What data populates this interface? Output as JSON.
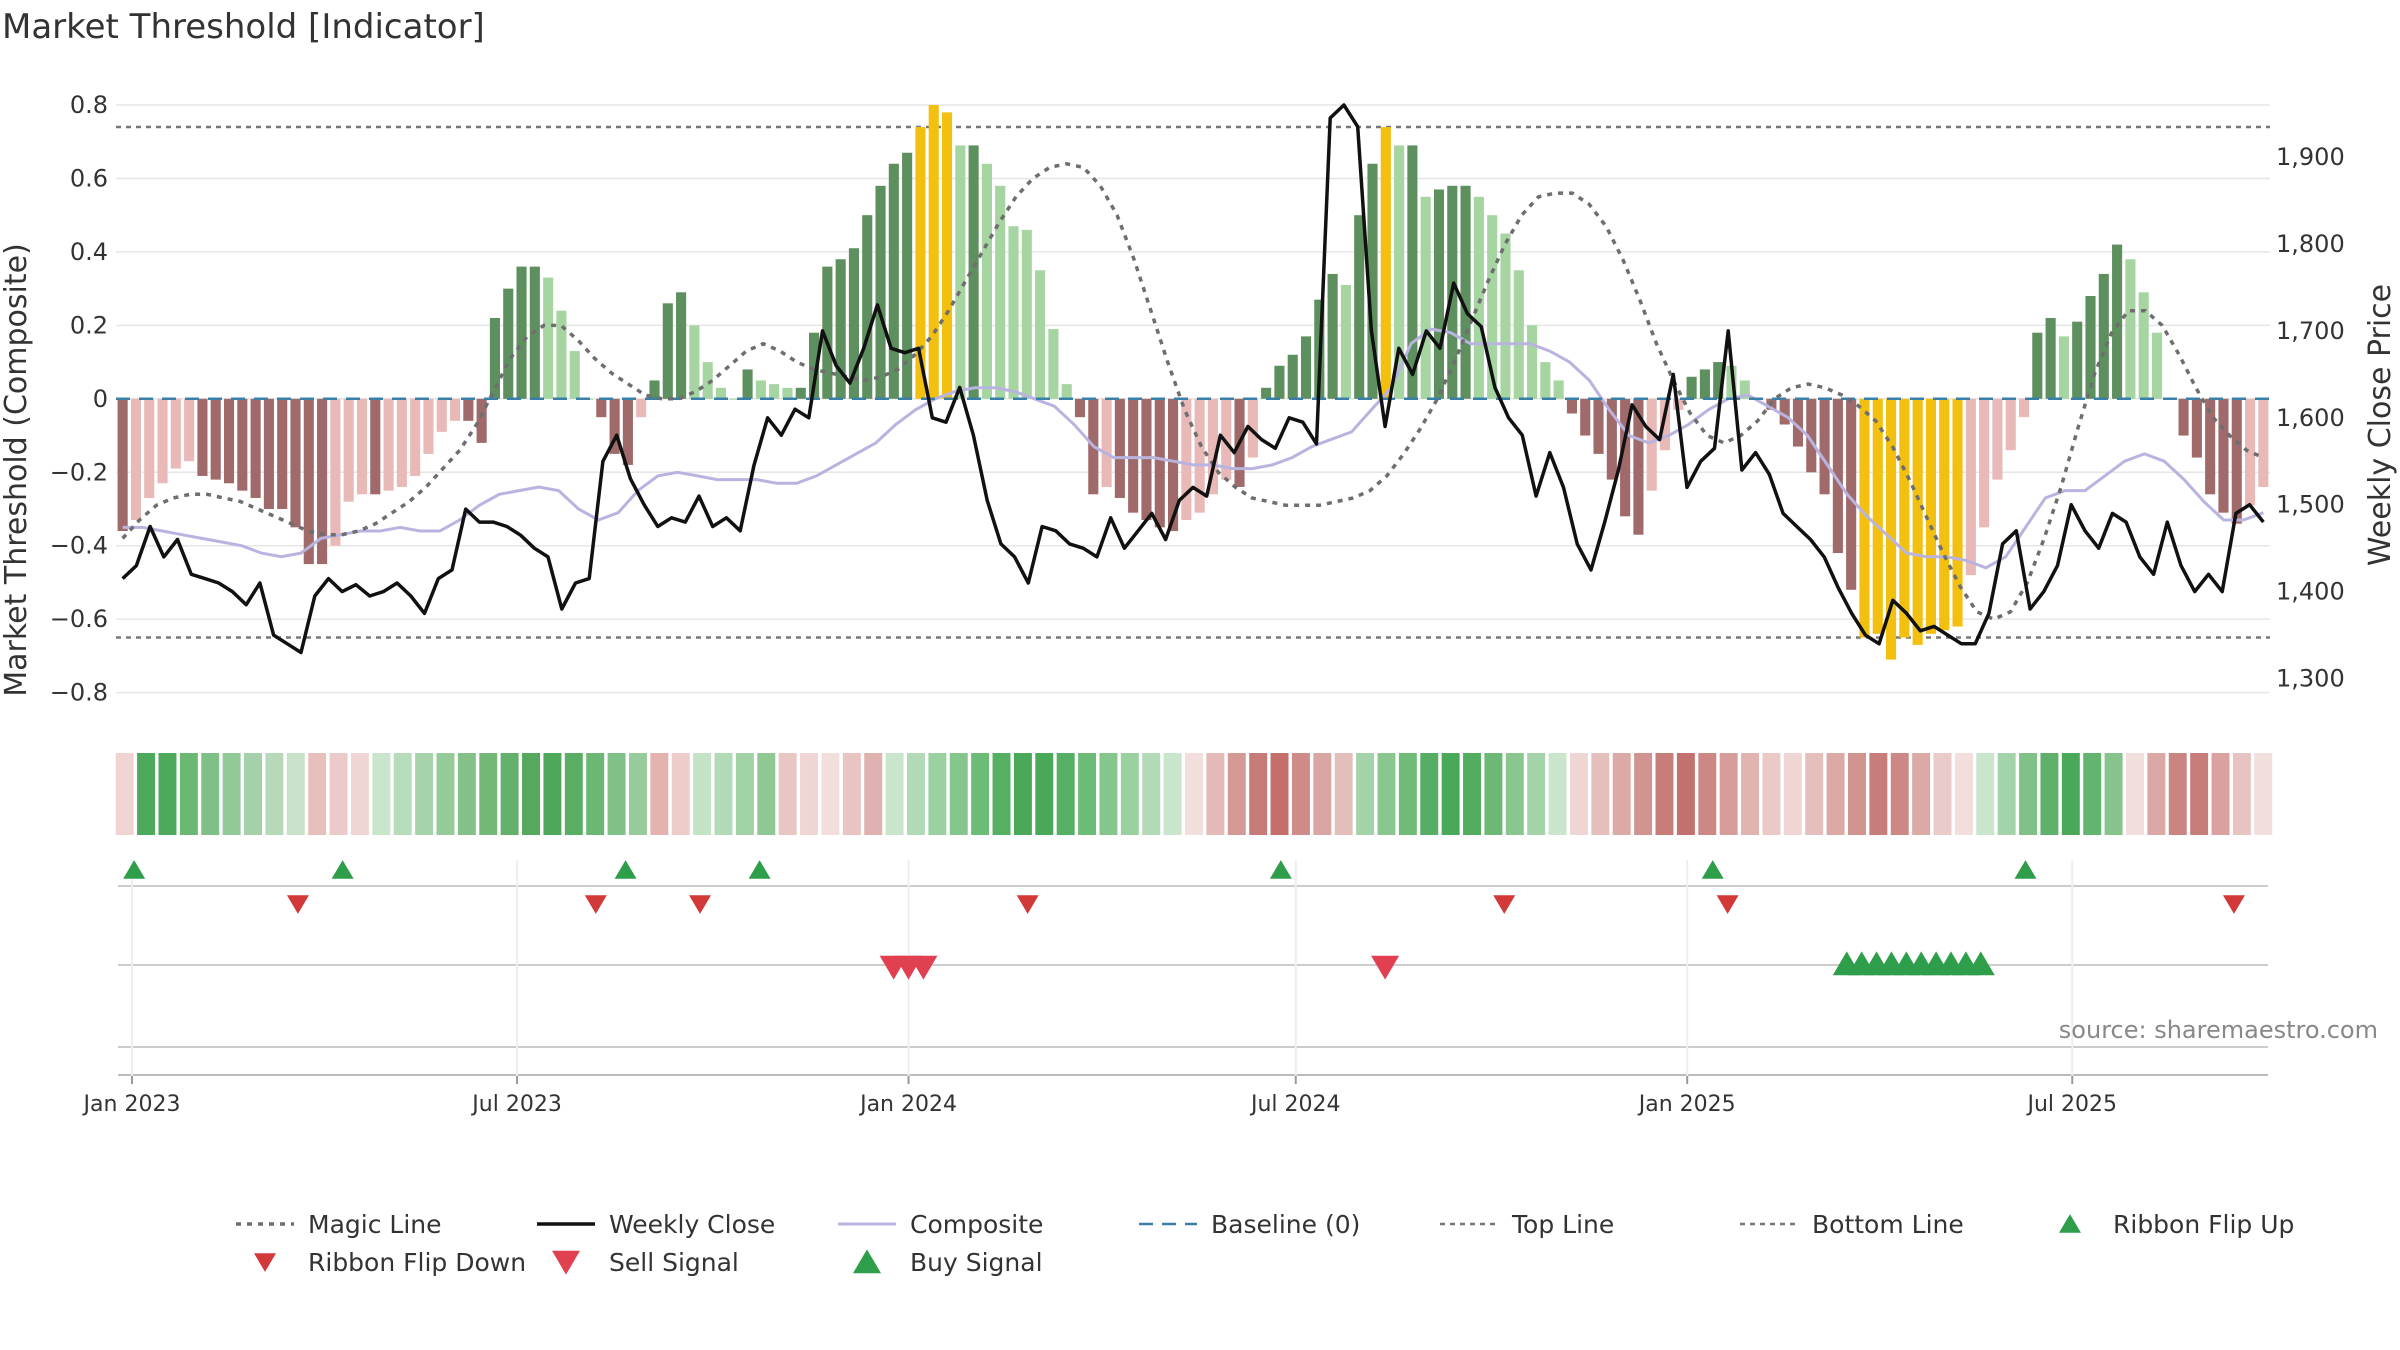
{
  "chart_data": {
    "type": "bar",
    "title": "Market Threshold [Indicator]",
    "ylabel_left": "Market Threshold (Composite)",
    "ylabel_right": "Weekly Close Price",
    "left_ticks": [
      "0.8",
      "0.6",
      "0.4",
      "0.2",
      "0",
      "−0.2",
      "−0.4",
      "−0.6",
      "−0.8"
    ],
    "right_ticks": [
      "1,900",
      "1,800",
      "1,700",
      "1,600",
      "1,500",
      "1,400",
      "1,300"
    ],
    "x_ticks": [
      "Jan 2023",
      "Jul 2023",
      "Jan 2024",
      "Jul 2024",
      "Jan 2025",
      "Jul 2025"
    ],
    "ylim_left": [
      -0.88,
      0.8
    ],
    "ylim_right": [
      1250,
      1960
    ],
    "top_line": 0.74,
    "bottom_line": -0.65,
    "source": "source: sharemaestro.com",
    "composite_bars": [
      -0.36,
      -0.33,
      -0.27,
      -0.23,
      -0.19,
      -0.17,
      -0.21,
      -0.22,
      -0.23,
      -0.25,
      -0.27,
      -0.3,
      -0.3,
      -0.35,
      -0.45,
      -0.45,
      -0.4,
      -0.28,
      -0.26,
      -0.26,
      -0.25,
      -0.24,
      -0.21,
      -0.15,
      -0.09,
      -0.06,
      -0.06,
      -0.12,
      0.22,
      0.3,
      0.36,
      0.36,
      0.33,
      0.24,
      0.13,
      0.0,
      -0.05,
      -0.15,
      -0.18,
      -0.05,
      0.05,
      0.26,
      0.29,
      0.2,
      0.1,
      0.03,
      0.0,
      0.08,
      0.05,
      0.04,
      0.03,
      0.03,
      0.18,
      0.36,
      0.38,
      0.41,
      0.5,
      0.58,
      0.64,
      0.67,
      0.74,
      0.8,
      0.78,
      0.69,
      0.69,
      0.64,
      0.58,
      0.47,
      0.46,
      0.35,
      0.19,
      0.04,
      -0.05,
      -0.26,
      -0.24,
      -0.27,
      -0.31,
      -0.33,
      -0.35,
      -0.36,
      -0.33,
      -0.31,
      -0.26,
      -0.22,
      -0.24,
      -0.16,
      0.03,
      0.09,
      0.12,
      0.17,
      0.27,
      0.34,
      0.31,
      0.5,
      0.64,
      0.74,
      0.69,
      0.69,
      0.55,
      0.57,
      0.58,
      0.58,
      0.55,
      0.5,
      0.45,
      0.35,
      0.2,
      0.1,
      0.05,
      -0.04,
      -0.1,
      -0.15,
      -0.22,
      -0.32,
      -0.37,
      -0.25,
      -0.14,
      -0.03,
      0.06,
      0.08,
      0.1,
      0.09,
      0.05,
      0.0,
      -0.03,
      -0.07,
      -0.13,
      -0.2,
      -0.26,
      -0.42,
      -0.52,
      -0.65,
      -0.64,
      -0.71,
      -0.65,
      -0.67,
      -0.64,
      -0.63,
      -0.62,
      -0.48,
      -0.35,
      -0.22,
      -0.14,
      -0.05,
      0.18,
      0.22,
      0.17,
      0.21,
      0.28,
      0.34,
      0.42,
      0.38,
      0.29,
      0.18,
      0.0,
      -0.1,
      -0.16,
      -0.26,
      -0.31,
      -0.34,
      -0.29,
      -0.24
    ],
    "bar_colors": {
      "strong_up": "#5e8f5e",
      "up": "#a6d5a2",
      "strong_down": "#a06a6a",
      "down": "#e8b9b6",
      "extreme": "#f4c010"
    },
    "weekly_close": [
      1415,
      1430,
      1475,
      1440,
      1460,
      1420,
      1415,
      1410,
      1400,
      1385,
      1410,
      1350,
      1340,
      1330,
      1395,
      1415,
      1400,
      1408,
      1395,
      1400,
      1410,
      1395,
      1375,
      1415,
      1425,
      1495,
      1480,
      1480,
      1475,
      1465,
      1450,
      1440,
      1380,
      1410,
      1415,
      1550,
      1580,
      1530,
      1500,
      1475,
      1485,
      1480,
      1510,
      1475,
      1485,
      1470,
      1545,
      1600,
      1580,
      1610,
      1600,
      1700,
      1660,
      1640,
      1680,
      1730,
      1680,
      1675,
      1680,
      1600,
      1595,
      1635,
      1580,
      1505,
      1455,
      1440,
      1410,
      1475,
      1470,
      1455,
      1450,
      1440,
      1485,
      1450,
      1470,
      1490,
      1460,
      1505,
      1520,
      1510,
      1580,
      1560,
      1590,
      1575,
      1565,
      1600,
      1595,
      1570,
      1945,
      1960,
      1935,
      1700,
      1590,
      1680,
      1650,
      1700,
      1680,
      1755,
      1720,
      1705,
      1635,
      1600,
      1580,
      1510,
      1560,
      1520,
      1455,
      1425,
      1480,
      1540,
      1615,
      1590,
      1575,
      1650,
      1520,
      1550,
      1565,
      1700,
      1540,
      1560,
      1535,
      1490,
      1475,
      1460,
      1440,
      1405,
      1375,
      1350,
      1340,
      1390,
      1375,
      1355,
      1360,
      1350,
      1340,
      1340,
      1375,
      1455,
      1470,
      1380,
      1400,
      1430,
      1500,
      1470,
      1450,
      1490,
      1480,
      1440,
      1420,
      1480,
      1430,
      1400,
      1420,
      1400,
      1490,
      1500,
      1480
    ],
    "magic_line": [
      -0.38,
      -0.33,
      -0.29,
      -0.27,
      -0.26,
      -0.26,
      -0.27,
      -0.28,
      -0.3,
      -0.32,
      -0.34,
      -0.36,
      -0.37,
      -0.37,
      -0.36,
      -0.34,
      -0.31,
      -0.28,
      -0.24,
      -0.19,
      -0.14,
      -0.07,
      0.02,
      0.11,
      0.17,
      0.2,
      0.2,
      0.16,
      0.11,
      0.07,
      0.04,
      0.01,
      0.0,
      0.0,
      0.02,
      0.05,
      0.09,
      0.13,
      0.15,
      0.13,
      0.1,
      0.08,
      0.07,
      0.06,
      0.05,
      0.06,
      0.08,
      0.12,
      0.17,
      0.24,
      0.32,
      0.4,
      0.48,
      0.55,
      0.6,
      0.63,
      0.64,
      0.63,
      0.58,
      0.5,
      0.38,
      0.24,
      0.1,
      -0.03,
      -0.13,
      -0.2,
      -0.24,
      -0.27,
      -0.28,
      -0.29,
      -0.29,
      -0.29,
      -0.28,
      -0.27,
      -0.25,
      -0.21,
      -0.15,
      -0.08,
      0.0,
      0.1,
      0.21,
      0.32,
      0.42,
      0.5,
      0.55,
      0.56,
      0.56,
      0.53,
      0.47,
      0.38,
      0.27,
      0.15,
      0.05,
      -0.04,
      -0.1,
      -0.12,
      -0.1,
      -0.06,
      0.0,
      0.03,
      0.04,
      0.03,
      0.01,
      -0.02,
      -0.06,
      -0.13,
      -0.22,
      -0.32,
      -0.42,
      -0.51,
      -0.58,
      -0.6,
      -0.58,
      -0.5,
      -0.38,
      -0.24,
      -0.08,
      0.07,
      0.18,
      0.24,
      0.24,
      0.2,
      0.12,
      0.03,
      -0.05,
      -0.1,
      -0.14,
      -0.16
    ],
    "composite_line": [
      -0.35,
      -0.35,
      -0.36,
      -0.37,
      -0.38,
      -0.39,
      -0.4,
      -0.42,
      -0.43,
      -0.42,
      -0.38,
      -0.37,
      -0.36,
      -0.36,
      -0.35,
      -0.36,
      -0.36,
      -0.33,
      -0.29,
      -0.26,
      -0.25,
      -0.24,
      -0.25,
      -0.3,
      -0.33,
      -0.31,
      -0.25,
      -0.21,
      -0.2,
      -0.21,
      -0.22,
      -0.22,
      -0.22,
      -0.23,
      -0.23,
      -0.21,
      -0.18,
      -0.15,
      -0.12,
      -0.07,
      -0.03,
      0.0,
      0.02,
      0.03,
      0.03,
      0.02,
      0.0,
      -0.02,
      -0.07,
      -0.13,
      -0.16,
      -0.16,
      -0.16,
      -0.17,
      -0.18,
      -0.18,
      -0.19,
      -0.19,
      -0.18,
      -0.16,
      -0.13,
      -0.11,
      -0.09,
      -0.03,
      0.03,
      0.15,
      0.19,
      0.18,
      0.15,
      0.15,
      0.15,
      0.15,
      0.13,
      0.1,
      0.05,
      -0.03,
      -0.1,
      -0.12,
      -0.1,
      -0.07,
      -0.03,
      0.0,
      0.01,
      -0.02,
      -0.05,
      -0.1,
      -0.18,
      -0.26,
      -0.32,
      -0.37,
      -0.42,
      -0.43,
      -0.43,
      -0.44,
      -0.46,
      -0.43,
      -0.35,
      -0.27,
      -0.25,
      -0.25,
      -0.21,
      -0.17,
      -0.15,
      -0.17,
      -0.22,
      -0.28,
      -0.33,
      -0.33,
      -0.31
    ],
    "ribbon_colors": [
      "#f0d4d2",
      "#4daa5c",
      "#4daa5c",
      "#6bb873",
      "#7fc086",
      "#91c997",
      "#a4d1a9",
      "#b6dab9",
      "#c8e2ca",
      "#e7c0bd",
      "#ebcbc9",
      "#efd6d4",
      "#c9e5cc",
      "#b7dcbb",
      "#a6d3aa",
      "#95ca99",
      "#84c189",
      "#73b879",
      "#62b06a",
      "#55a85e",
      "#4da85a",
      "#5aae64",
      "#6cb774",
      "#80c187",
      "#96cb9b",
      "#e4b3b0",
      "#edccca",
      "#c3e2c6",
      "#b2dab6",
      "#a1d1a5",
      "#90c894",
      "#e8c6c4",
      "#efd5d3",
      "#f2dedd",
      "#e8c4c2",
      "#dfb2b0",
      "#c9e5cc",
      "#b2dab6",
      "#9bd0a0",
      "#84c68b",
      "#6cbb76",
      "#56b063",
      "#4aa959",
      "#4aa959",
      "#56b063",
      "#6cbb76",
      "#84c68b",
      "#9bd0a0",
      "#b2dab6",
      "#c9e5cc",
      "#f2dedd",
      "#e3bab8",
      "#d49895",
      "#c77b78",
      "#c56f6c",
      "#cf8b88",
      "#d9a6a3",
      "#e3bfbc",
      "#a5d3a9",
      "#8ac78f",
      "#6fbb77",
      "#55ae63",
      "#4aa959",
      "#52ad60",
      "#6cb874",
      "#8ac78f",
      "#a5d3a9",
      "#c9e5cc",
      "#efd5d3",
      "#e5bfbc",
      "#dba9a6",
      "#d19390",
      "#c77d7a",
      "#c3716e",
      "#cd8784",
      "#d79d9a",
      "#e1b3b1",
      "#ebc9c7",
      "#efd5d3",
      "#e5bfbc",
      "#dba9a6",
      "#d19390",
      "#c77d7a",
      "#cd8784",
      "#dba9a6",
      "#e9cbc9",
      "#f2dedd",
      "#c9e5cc",
      "#a5d3a9",
      "#81c188",
      "#5eb06a",
      "#4aa959",
      "#63b46e",
      "#86c48c",
      "#f2dedd",
      "#dca8a5",
      "#ca8482",
      "#c77d7a",
      "#d9a2a0",
      "#e7c3c1",
      "#f2dedd"
    ],
    "signals": {
      "ribbon_flip_up_x": [
        "2023-01-02",
        "2023-04-10",
        "2023-08-21",
        "2023-10-23",
        "2024-06-24",
        "2025-01-13",
        "2025-06-09"
      ],
      "ribbon_flip_down_x": [
        "2023-03-20",
        "2023-08-07",
        "2023-09-25",
        "2024-02-26",
        "2024-10-07",
        "2025-01-20",
        "2025-09-15"
      ],
      "sell_signal_x": [
        "2023-12-25",
        "2024-01-01",
        "2024-01-08",
        "2024-08-12"
      ],
      "buy_signal_x": [
        "2025-03-17",
        "2025-03-24",
        "2025-03-31",
        "2025-04-07",
        "2025-04-14",
        "2025-04-21",
        "2025-04-28",
        "2025-05-05",
        "2025-05-12",
        "2025-05-19"
      ]
    },
    "legend": [
      "Magic Line",
      "Weekly Close",
      "Composite",
      "Baseline (0)",
      "Top Line",
      "Bottom Line",
      "Ribbon Flip Up",
      "Ribbon Flip Down",
      "Sell Signal",
      "Buy Signal"
    ],
    "colors": {
      "magic": "#6e6e6e",
      "close": "#111111",
      "composite": "#b9b3e0",
      "baseline": "#3a7fa8",
      "grid": "#e6e6e6",
      "flip_up": "#2f9e4a",
      "flip_down": "#d23a3a",
      "sell": "#e04050",
      "buy": "#2f9e4a"
    }
  }
}
